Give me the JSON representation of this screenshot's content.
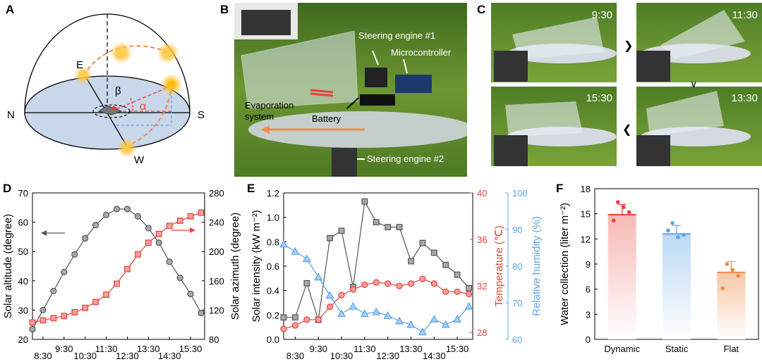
{
  "panels": {
    "A": "A",
    "B": "B",
    "C": "C",
    "D": "D",
    "E": "E",
    "F": "F"
  },
  "panel_a": {
    "labels": {
      "north": "N",
      "south": "S",
      "east": "E",
      "west": "W",
      "beta": "β",
      "alpha": "α"
    }
  },
  "panel_b": {
    "labels": {
      "steering1": "Steering engine #1",
      "micro": "Microcontroller",
      "evap1": "Evaporation",
      "evap2": "system",
      "battery": "Battery",
      "steering2": "Steering engine #2"
    }
  },
  "panel_c": {
    "times": [
      "9:30",
      "11:30",
      "15:30",
      "13:30"
    ]
  },
  "colors": {
    "gray": "#555555",
    "gray_fill": "#a9a9a9",
    "red": "#e8413c",
    "red_fill": "#f4a09c",
    "blue": "#5aa5e8",
    "blue_fill": "#a9cdf2",
    "orange": "#f08a4b",
    "sky": "#c8d7ea"
  },
  "chart_data": [
    {
      "id": "D",
      "type": "line",
      "xlabel": "",
      "ylabel": "Solar altitude (degree)",
      "y2label": "Solar azimuth (degree)",
      "ylim": [
        20,
        70
      ],
      "y2lim": [
        80,
        280
      ],
      "xlim": [
        8.0,
        16.167
      ],
      "x_ticks": [
        "8:30",
        "9:30",
        "10:30",
        "11:30",
        "12:30",
        "13:30",
        "14:30",
        "15:30"
      ],
      "y_ticks": [
        "20",
        "30",
        "40",
        "50",
        "60",
        "70"
      ],
      "y2_ticks": [
        "80",
        "120",
        "160",
        "200",
        "240",
        "280"
      ],
      "series": [
        {
          "name": "Solar altitude",
          "axis": "left",
          "marker": "circle",
          "x": [
            8.0,
            8.5,
            9.0,
            9.5,
            10.0,
            10.5,
            11.0,
            11.5,
            12.0,
            12.5,
            13.0,
            13.5,
            14.0,
            14.5,
            15.0,
            15.5,
            16.0
          ],
          "values": [
            23.5,
            30,
            36.5,
            43,
            49,
            54.5,
            59,
            62.5,
            64.5,
            64.5,
            62,
            58,
            53,
            46.5,
            41,
            35.5,
            29
          ]
        },
        {
          "name": "Solar azimuth",
          "axis": "right",
          "marker": "square",
          "x": [
            8.0,
            8.5,
            9.0,
            9.5,
            10.0,
            10.5,
            11.0,
            11.5,
            12.0,
            12.5,
            13.0,
            13.5,
            14.0,
            14.5,
            15.0,
            15.5,
            16.0
          ],
          "values": [
            103,
            106,
            109,
            112,
            117,
            123,
            131,
            141,
            156,
            176,
            196,
            212,
            224,
            235,
            242,
            248,
            253
          ]
        }
      ]
    },
    {
      "id": "E",
      "type": "line",
      "ylabel": "Solar intensity (kW m⁻²)",
      "y2label": "Temperature (℃)",
      "y3label": "Relative humidity (%)",
      "ylim": [
        0,
        1.2
      ],
      "y2lim": [
        27.4,
        40
      ],
      "y3lim": [
        60,
        100
      ],
      "xlim": [
        8.0,
        16.167
      ],
      "x_ticks": [
        "8:30",
        "9:30",
        "10:30",
        "11:30",
        "12:30",
        "13:30",
        "14:30",
        "15:30"
      ],
      "y_ticks": [
        "0.0",
        "0.2",
        "0.4",
        "0.6",
        "0.8",
        "1.0",
        "1.2"
      ],
      "y2_ticks": [
        "28",
        "32",
        "36",
        "40"
      ],
      "y3_ticks": [
        "60",
        "70",
        "80",
        "90",
        "100"
      ],
      "series": [
        {
          "name": "Solar intensity",
          "axis": "left",
          "marker": "square",
          "x": [
            8.0,
            8.5,
            9.0,
            9.5,
            10.0,
            10.5,
            11.0,
            11.5,
            12.0,
            12.5,
            13.0,
            13.5,
            14.0,
            14.5,
            15.0,
            15.5,
            16.0
          ],
          "values": [
            0.18,
            0.18,
            0.46,
            0.16,
            0.83,
            0.89,
            0.43,
            1.13,
            0.96,
            0.92,
            0.92,
            0.64,
            0.79,
            0.71,
            0.61,
            0.53,
            0.42
          ]
        },
        {
          "name": "Temperature",
          "axis": "right",
          "marker": "circle",
          "x": [
            8.0,
            8.5,
            9.0,
            9.5,
            10.0,
            10.5,
            11.0,
            11.5,
            12.0,
            12.5,
            13.0,
            13.5,
            14.0,
            14.5,
            15.0,
            15.5,
            16.0
          ],
          "values": [
            28.3,
            28.6,
            29.1,
            29.1,
            30.2,
            31.2,
            31.7,
            32.1,
            32.3,
            32.2,
            32.0,
            32.2,
            32.6,
            32.2,
            31.5,
            31.5,
            31.3
          ]
        },
        {
          "name": "Relative humidity",
          "axis": "right2",
          "marker": "triangle",
          "x": [
            8.0,
            8.5,
            9.0,
            9.5,
            10.0,
            10.5,
            11.0,
            11.5,
            12.0,
            12.5,
            13.0,
            13.5,
            14.0,
            14.5,
            15.0,
            15.5,
            16.0
          ],
          "values": [
            86,
            84,
            82,
            77,
            72,
            67,
            69,
            67,
            67.5,
            66.5,
            65,
            64,
            62,
            65.5,
            64,
            65.5,
            69
          ]
        }
      ]
    },
    {
      "id": "F",
      "type": "bar",
      "ylabel": "Water collection (liter m⁻²)",
      "ylim": [
        0,
        18
      ],
      "y_ticks": [
        "0",
        "3",
        "6",
        "9",
        "12",
        "15",
        "18"
      ],
      "categories": [
        "Dynamic",
        "Static",
        "Flat"
      ],
      "values": [
        14.9,
        12.6,
        8.0
      ],
      "errors": [
        1.2,
        1.0,
        1.3
      ],
      "points": [
        [
          16.4,
          15.8,
          15.2,
          14.2
        ],
        [
          13.9,
          12.2,
          12.5,
          13.0
        ],
        [
          9.0,
          8.3,
          7.6,
          6.1
        ]
      ]
    }
  ]
}
